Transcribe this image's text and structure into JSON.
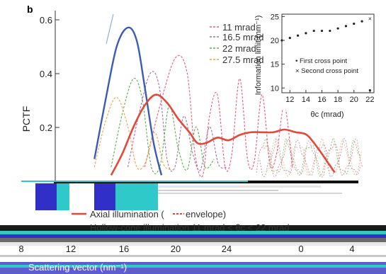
{
  "panel_label": "b",
  "chart_data": [
    {
      "type": "line",
      "ylabel": "PCTF",
      "xlabel": "Scattering vector (nm⁻¹)",
      "ylim": [
        0,
        0.62
      ],
      "y_ticks": [
        "0.6",
        "0.4",
        "0.2"
      ],
      "x_ticks": [
        "8",
        "12",
        "16",
        "20",
        "24",
        "0",
        "4"
      ],
      "legend_position": "top-right",
      "legend": [
        "11 mrad",
        "16.5 mrad",
        "22 mrad",
        "27.5 mrad"
      ],
      "bottom_legend": [
        "Axial illumination (",
        "envelope)",
        "Hollow-cone illumination 11 mrad < θc < 22 mrad"
      ],
      "colors": {
        "axial": "#3b5bb5",
        "envelope": "#e04a3a",
        "s11": "#e0607a",
        "s16_5": "#a070b0",
        "s22": "#5cb04a",
        "s27_5": "#f0a050"
      },
      "series": [
        {
          "role": "axial-illumination",
          "style": "solid",
          "x": [
            3.5,
            4.5,
            5.5,
            6.5,
            7.3,
            8.0,
            8.8,
            9.5
          ],
          "y": [
            0.08,
            0.3,
            0.5,
            0.57,
            0.52,
            0.35,
            0.14,
            0.02
          ]
        },
        {
          "role": "hollow-cone-envelope",
          "style": "solid",
          "x": [
            5.0,
            6.0,
            7.0,
            8.0,
            9.0,
            10.0,
            11.0,
            12.0,
            12.7,
            13.5,
            14.5,
            15.5,
            16.5,
            17.5,
            18.5,
            19.5,
            20.5,
            21.5,
            22.5,
            23.5,
            24.5,
            25.0
          ],
          "y": [
            0.02,
            0.1,
            0.2,
            0.28,
            0.32,
            0.29,
            0.23,
            0.18,
            0.14,
            0.14,
            0.16,
            0.15,
            0.17,
            0.18,
            0.18,
            0.18,
            0.19,
            0.18,
            0.17,
            0.12,
            0.06,
            0.03
          ]
        },
        {
          "name": "11 mrad",
          "style": "dashed",
          "x": [
            8.0,
            9.5,
            10.8,
            11.8,
            12.5,
            13.2,
            13.8,
            14.5,
            15.2,
            15.8,
            16.5,
            17.2,
            17.8,
            18.5,
            19.2,
            19.8,
            20.5,
            21.2
          ],
          "y": [
            0.05,
            0.3,
            0.46,
            0.4,
            0.1,
            0.02,
            0.24,
            0.32,
            0.05,
            0.1,
            0.38,
            0.08,
            0.07,
            0.32,
            0.06,
            0.1,
            0.28,
            0.05
          ]
        },
        {
          "name": "16.5 mrad",
          "style": "dashed",
          "x": [
            6.5,
            7.5,
            8.5,
            9.3,
            10.0,
            10.7,
            11.5,
            12.3,
            13.0,
            13.8,
            14.6,
            15.4
          ],
          "y": [
            0.05,
            0.25,
            0.4,
            0.35,
            0.08,
            0.05,
            0.24,
            0.1,
            0.04,
            0.2,
            0.06,
            0.05
          ]
        },
        {
          "name": "22 mrad",
          "style": "dashed",
          "x": [
            5.0,
            6.0,
            7.0,
            7.8,
            8.6,
            9.4,
            10.2,
            11.0,
            11.8,
            12.6,
            13.4,
            14.2
          ],
          "y": [
            0.05,
            0.25,
            0.38,
            0.3,
            0.05,
            0.06,
            0.28,
            0.12,
            0.04,
            0.2,
            0.05,
            0.08
          ]
        },
        {
          "name": "27.5 mrad",
          "style": "dashed",
          "x": [
            3.5,
            4.5,
            5.5,
            6.5,
            7.3,
            8.1,
            8.9,
            9.7,
            10.5
          ],
          "y": [
            0.05,
            0.22,
            0.31,
            0.2,
            0.05,
            0.07,
            0.18,
            0.06,
            0.04
          ]
        }
      ]
    },
    {
      "type": "scatter",
      "role": "inset",
      "xlabel": "θc (mrad)",
      "ylabel": "Information limit (nm⁻¹)",
      "xlim": [
        11,
        22.5
      ],
      "ylim": [
        9,
        25.5
      ],
      "x_ticks": [
        "12",
        "14",
        "16",
        "18",
        "20",
        "22"
      ],
      "y_ticks": [
        "25",
        "20",
        "15",
        "10"
      ],
      "legend": [
        "• First cross point",
        "× Second cross point"
      ],
      "series": [
        {
          "name": "First cross point",
          "x": [
            11,
            12,
            13,
            14,
            15,
            16,
            17,
            18,
            19,
            20,
            21,
            22
          ],
          "y": [
            20.0,
            20.5,
            21.0,
            21.5,
            22.0,
            22.0,
            22.0,
            22.5,
            23.0,
            23.5,
            24.0,
            9.5
          ]
        },
        {
          "name": "Second cross point",
          "x": [
            22
          ],
          "y": [
            24.5
          ]
        }
      ]
    }
  ]
}
